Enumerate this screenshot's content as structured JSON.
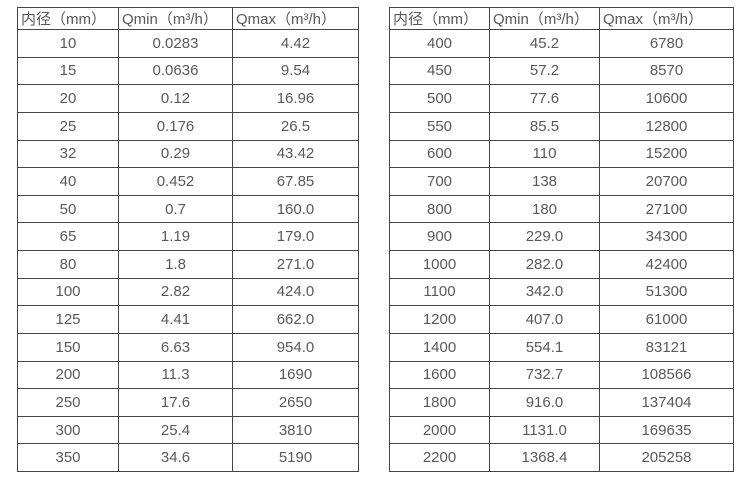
{
  "page": {
    "background_color": "#ffffff",
    "border_color": "#444444",
    "text_color": "#595959"
  },
  "tables": [
    {
      "headers": [
        "内径（mm）",
        "Qmin（m³/h）",
        "Qmax（m³/h）"
      ],
      "rows": [
        [
          "10",
          "0.0283",
          "4.42"
        ],
        [
          "15",
          "0.0636",
          "9.54"
        ],
        [
          "20",
          "0.12",
          "16.96"
        ],
        [
          "25",
          "0.176",
          "26.5"
        ],
        [
          "32",
          "0.29",
          "43.42"
        ],
        [
          "40",
          "0.452",
          "67.85"
        ],
        [
          "50",
          "0.7",
          "160.0"
        ],
        [
          "65",
          "1.19",
          "179.0"
        ],
        [
          "80",
          "1.8",
          "271.0"
        ],
        [
          "100",
          "2.82",
          "424.0"
        ],
        [
          "125",
          "4.41",
          "662.0"
        ],
        [
          "150",
          "6.63",
          "954.0"
        ],
        [
          "200",
          "11.3",
          "1690"
        ],
        [
          "250",
          "17.6",
          "2650"
        ],
        [
          "300",
          "25.4",
          "3810"
        ],
        [
          "350",
          "34.6",
          "5190"
        ]
      ]
    },
    {
      "headers": [
        "内径（mm）",
        "Qmin（m³/h）",
        "Qmax（m³/h）"
      ],
      "rows": [
        [
          "400",
          "45.2",
          "6780"
        ],
        [
          "450",
          "57.2",
          "8570"
        ],
        [
          "500",
          "77.6",
          "10600"
        ],
        [
          "550",
          "85.5",
          "12800"
        ],
        [
          "600",
          "110",
          "15200"
        ],
        [
          "700",
          "138",
          "20700"
        ],
        [
          "800",
          "180",
          "27100"
        ],
        [
          "900",
          "229.0",
          "34300"
        ],
        [
          "1000",
          "282.0",
          "42400"
        ],
        [
          "1100",
          "342.0",
          "51300"
        ],
        [
          "1200",
          "407.0",
          "61000"
        ],
        [
          "1400",
          "554.1",
          "83121"
        ],
        [
          "1600",
          "732.7",
          "108566"
        ],
        [
          "1800",
          "916.0",
          "137404"
        ],
        [
          "2000",
          "1131.0",
          "169635"
        ],
        [
          "2200",
          "1368.4",
          "205258"
        ]
      ]
    }
  ]
}
